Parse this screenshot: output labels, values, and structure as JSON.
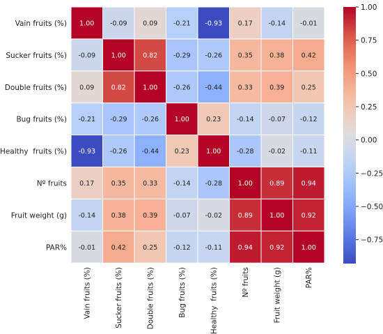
{
  "chart_data": {
    "type": "heatmap",
    "title": "",
    "row_labels": [
      "Vain fruits (%)",
      "Sucker fruits (%)",
      "Double fruits (%)",
      "Bug fruits (%)",
      "Healthy  fruits (%)",
      "Nº fruits",
      "Fruit weight (g)",
      "PAR%"
    ],
    "col_labels": [
      "Vain fruits (%)",
      "Sucker fruits (%)",
      "Double fruits (%)",
      "Bug fruits (%)",
      "Healthy  fruits (%)",
      "Nº fruits",
      "Fruit weight (g)",
      "PAR%"
    ],
    "matrix": [
      [
        1.0,
        -0.09,
        0.09,
        -0.21,
        -0.93,
        0.17,
        -0.14,
        -0.01
      ],
      [
        -0.09,
        1.0,
        0.82,
        -0.29,
        -0.26,
        0.35,
        0.38,
        0.42
      ],
      [
        0.09,
        0.82,
        1.0,
        -0.26,
        -0.44,
        0.33,
        0.39,
        0.25
      ],
      [
        -0.21,
        -0.29,
        -0.26,
        1.0,
        0.23,
        -0.14,
        -0.07,
        -0.12
      ],
      [
        -0.93,
        -0.26,
        -0.44,
        0.23,
        1.0,
        -0.28,
        -0.02,
        -0.11
      ],
      [
        0.17,
        0.35,
        0.33,
        -0.14,
        -0.28,
        1.0,
        0.89,
        0.94
      ],
      [
        -0.14,
        0.38,
        0.39,
        -0.07,
        -0.02,
        0.89,
        1.0,
        0.92
      ],
      [
        -0.01,
        0.42,
        0.25,
        -0.12,
        -0.11,
        0.94,
        0.92,
        1.0
      ]
    ],
    "colormap": "coolwarm",
    "value_range": [
      -0.93,
      1.0
    ],
    "colorbar_ticks": [
      1.0,
      0.75,
      0.5,
      0.25,
      0.0,
      -0.25,
      -0.5,
      -0.75
    ],
    "colorbar_tick_labels": [
      "1.00",
      "0.75",
      "0.50",
      "0.25",
      "0.00",
      "−0.25",
      "−0.50",
      "−0.75"
    ],
    "annotation_format": "2 decimals",
    "gridlines": "white cell borders",
    "x_tick_rotation_deg": 90
  }
}
